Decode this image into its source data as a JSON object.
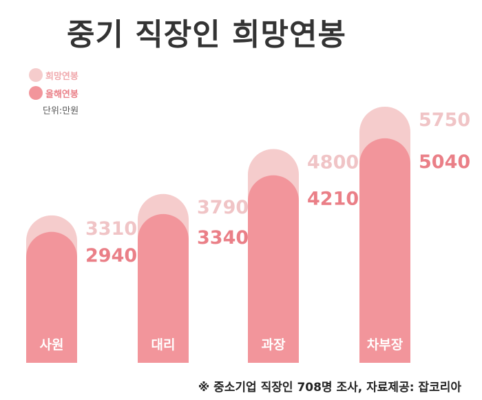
{
  "title": "중기 직장인 희망연봉",
  "unit_note": "단위:만원",
  "source_note": "※ 중소기업 직장인 708명 조사,  자료제공: 잡코리아",
  "colors": {
    "desired": "#f5cccc",
    "current": "#f2959b",
    "desired_label": "#f0c4c6",
    "current_label": "#ea7f87",
    "title": "#333333"
  },
  "chart_data": {
    "type": "bar",
    "categories": [
      "사원",
      "대리",
      "과장",
      "차부장"
    ],
    "series": [
      {
        "name": "희망연봉",
        "values": [
          3310,
          3790,
          4800,
          5750
        ]
      },
      {
        "name": "올해연봉",
        "values": [
          2940,
          3340,
          4210,
          5040
        ]
      }
    ],
    "legend_position": "top-left",
    "grid": false
  }
}
